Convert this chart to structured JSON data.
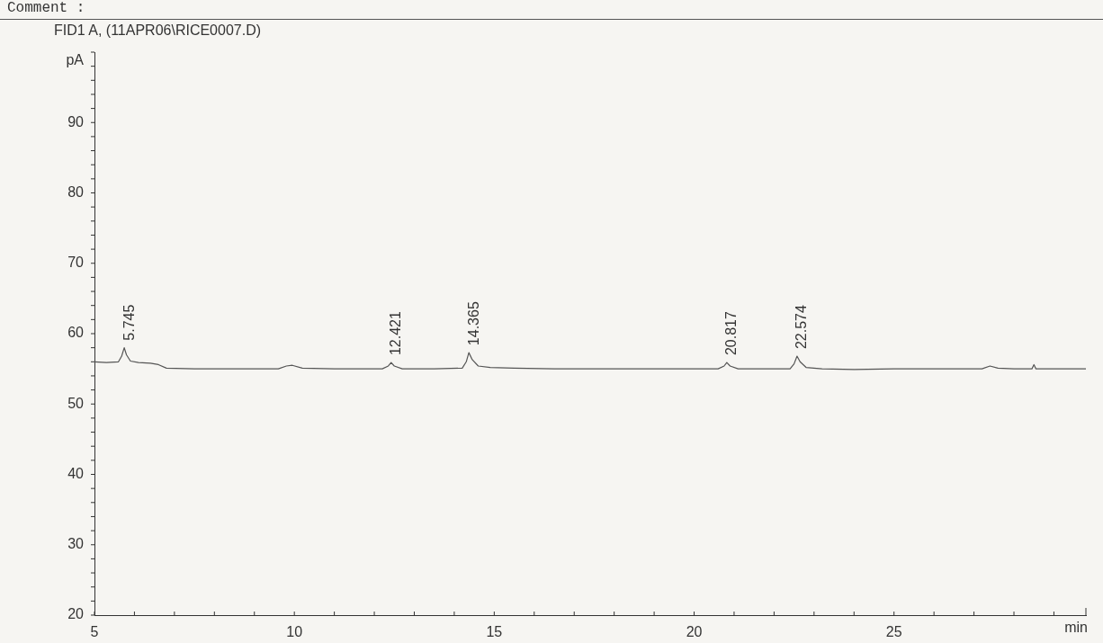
{
  "chart_data": {
    "type": "line",
    "title": "FID1 A, (11APR06\\RICE0007.D)",
    "xlabel": "min",
    "ylabel": "pA",
    "annotations": [
      "Comment :",
      {
        "text": "5.745",
        "x": 5.745,
        "y": 58.0
      },
      {
        "text": "12.421",
        "x": 12.421,
        "y": 55.9
      },
      {
        "text": "14.365",
        "x": 14.365,
        "y": 57.3
      },
      {
        "text": "20.817",
        "x": 20.817,
        "y": 55.9
      },
      {
        "text": "22.574",
        "x": 22.574,
        "y": 56.8
      }
    ],
    "series": [
      {
        "color": "#555555",
        "x": [
          5.0,
          5.3,
          5.6,
          5.68,
          5.745,
          5.8,
          5.9,
          6.1,
          6.4,
          6.6,
          6.8,
          7.5,
          8.5,
          9.6,
          9.8,
          9.95,
          10.2,
          11.0,
          12.2,
          12.35,
          12.421,
          12.5,
          12.7,
          13.5,
          14.2,
          14.3,
          14.365,
          14.45,
          14.6,
          14.9,
          15.5,
          16.5,
          18.0,
          19.2,
          20.0,
          20.6,
          20.75,
          20.817,
          20.9,
          21.1,
          21.8,
          22.4,
          22.5,
          22.574,
          22.65,
          22.8,
          23.2,
          24.0,
          25.0,
          26.5,
          27.2,
          27.4,
          27.6,
          28.0,
          28.45,
          28.5,
          28.55,
          29.0,
          29.8
        ],
        "values": [
          56.0,
          55.9,
          56.0,
          56.8,
          58.0,
          57.0,
          56.1,
          55.9,
          55.8,
          55.6,
          55.1,
          55.0,
          55.0,
          55.0,
          55.4,
          55.5,
          55.1,
          55.0,
          55.0,
          55.4,
          55.9,
          55.4,
          55.0,
          55.0,
          55.1,
          56.0,
          57.3,
          56.3,
          55.4,
          55.2,
          55.1,
          55.0,
          55.0,
          55.0,
          55.0,
          55.0,
          55.4,
          55.9,
          55.4,
          55.0,
          55.0,
          55.0,
          55.7,
          56.8,
          56.0,
          55.2,
          55.0,
          54.9,
          55.0,
          55.0,
          55.0,
          55.4,
          55.1,
          55.0,
          55.0,
          55.6,
          55.0,
          55.0,
          55.0
        ]
      }
    ],
    "xlim": [
      5,
      29.8
    ],
    "xticks": [
      5,
      10,
      15,
      20,
      25
    ],
    "ylim": [
      20,
      100
    ],
    "yticks": [
      20,
      30,
      40,
      50,
      60,
      70,
      80,
      90
    ],
    "grid": false,
    "legend": false,
    "marker": "none",
    "line_style": "solid"
  }
}
